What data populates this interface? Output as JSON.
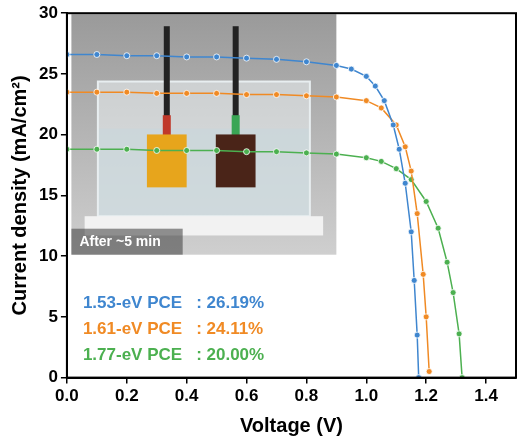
{
  "chart_data": {
    "type": "line",
    "x_label": "Voltage (V)",
    "y_label": "Current density (mA/cm²)",
    "inset_label": "After ~5 min",
    "legend": "lower left",
    "grid": false,
    "xlim": [
      0,
      1.5
    ],
    "ylim": [
      0,
      30
    ],
    "xticks": [
      {
        "value": 0,
        "label": "0.0"
      },
      {
        "value": 0.2,
        "label": "0.2"
      },
      {
        "value": 0.4,
        "label": "0.4"
      },
      {
        "value": 0.6,
        "label": "0.6"
      },
      {
        "value": 0.8,
        "label": "0.8"
      },
      {
        "value": 1.0,
        "label": "1.0"
      },
      {
        "value": 1.2,
        "label": "1.2"
      },
      {
        "value": 1.4,
        "label": "1.4"
      }
    ],
    "yticks": [
      0,
      5,
      10,
      15,
      20,
      25,
      30
    ],
    "series": [
      {
        "name": "1.53-eV PCE",
        "annotation": ": 26.19%",
        "color": "#3f86cf",
        "marker": "circle",
        "line_style": "solid",
        "x": [
          0,
          0.1,
          0.2,
          0.3,
          0.4,
          0.5,
          0.6,
          0.7,
          0.8,
          0.9,
          0.95,
          1.0,
          1.03,
          1.06,
          1.09,
          1.11,
          1.13,
          1.15,
          1.16,
          1.17,
          1.175
        ],
        "values": [
          26.6,
          26.6,
          26.5,
          26.5,
          26.4,
          26.4,
          26.3,
          26.2,
          26.0,
          25.7,
          25.4,
          24.8,
          24.0,
          22.8,
          20.8,
          18.8,
          16.0,
          12.0,
          8.0,
          3.5,
          0
        ]
      },
      {
        "name": "1.61-eV PCE",
        "annotation": ": 24.11%",
        "color": "#f08a24",
        "marker": "circle",
        "line_style": "solid",
        "x": [
          0,
          0.1,
          0.2,
          0.3,
          0.4,
          0.5,
          0.6,
          0.7,
          0.8,
          0.9,
          1.0,
          1.05,
          1.1,
          1.13,
          1.15,
          1.17,
          1.19,
          1.2,
          1.21
        ],
        "values": [
          23.5,
          23.5,
          23.5,
          23.4,
          23.4,
          23.4,
          23.3,
          23.3,
          23.2,
          23.1,
          22.8,
          22.2,
          20.8,
          19.0,
          17.0,
          13.5,
          8.5,
          5.0,
          0.5
        ]
      },
      {
        "name": "1.77-eV PCE",
        "annotation": ": 20.00%",
        "color": "#4cb050",
        "marker": "circle",
        "line_style": "solid",
        "x": [
          0,
          0.1,
          0.2,
          0.3,
          0.4,
          0.5,
          0.6,
          0.7,
          0.8,
          0.9,
          1.0,
          1.05,
          1.1,
          1.15,
          1.2,
          1.24,
          1.27,
          1.29,
          1.31,
          1.32
        ],
        "values": [
          18.8,
          18.8,
          18.8,
          18.7,
          18.7,
          18.7,
          18.6,
          18.6,
          18.5,
          18.4,
          18.1,
          17.8,
          17.2,
          16.3,
          14.5,
          12.3,
          9.5,
          7.0,
          3.6,
          0
        ]
      }
    ]
  }
}
